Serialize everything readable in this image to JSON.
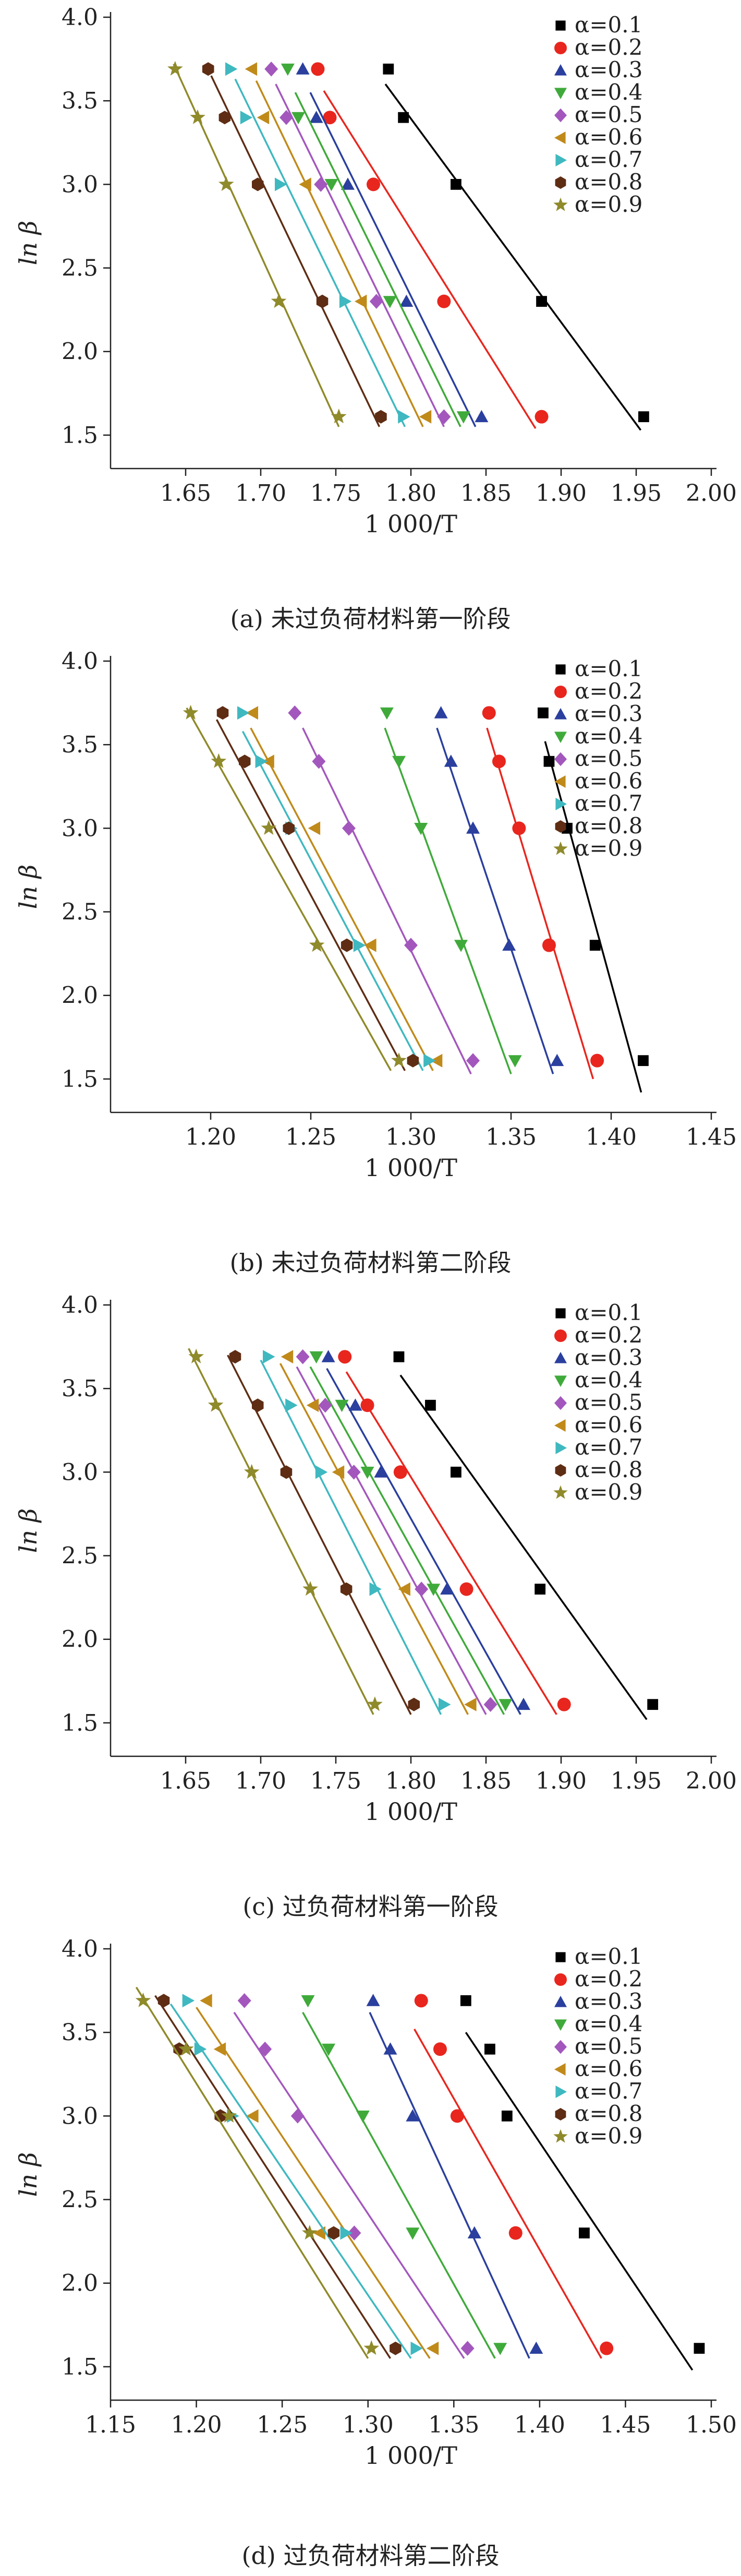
{
  "palette": {
    "black": "#000000",
    "red": "#e8261e",
    "blue": "#2a3f9e",
    "green": "#3faa3a",
    "purple": "#a357bd",
    "orange": "#c08a1a",
    "cyan": "#3fb8c0",
    "brown": "#5e2d14",
    "olive": "#8f8a2a"
  },
  "legend_labels": [
    "α=0.1",
    "α=0.2",
    "α=0.3",
    "α=0.4",
    "α=0.5",
    "α=0.6",
    "α=0.7",
    "α=0.8",
    "α=0.9"
  ],
  "chart_data": [
    {
      "type": "scatter",
      "caption": "(a) 未过负荷材料第一阶段",
      "xlabel": "1 000/T",
      "ylabel": "ln β",
      "xlim": [
        1.6,
        2.0
      ],
      "ylim": [
        1.3,
        4.0
      ],
      "xticks": [
        "1.65",
        "1.70",
        "1.75",
        "1.80",
        "1.85",
        "1.90",
        "1.95",
        "2.00"
      ],
      "yticks": [
        "1.5",
        "2.0",
        "2.5",
        "3.0",
        "3.5",
        "4.0"
      ],
      "y_levels": [
        3.69,
        3.4,
        3.0,
        2.3,
        1.61
      ],
      "series": [
        {
          "name": "α=0.1",
          "x": [
            1.785,
            1.795,
            1.83,
            1.887,
            1.955
          ],
          "fit": [
            [
              1.783,
              3.6
            ],
            [
              1.953,
              1.53
            ]
          ]
        },
        {
          "name": "α=0.2",
          "x": [
            1.738,
            1.746,
            1.775,
            1.822,
            1.887
          ],
          "fit": [
            [
              1.742,
              3.56
            ],
            [
              1.883,
              1.54
            ]
          ]
        },
        {
          "name": "α=0.3",
          "x": [
            1.728,
            1.737,
            1.758,
            1.797,
            1.847
          ],
          "fit": [
            [
              1.733,
              3.55
            ],
            [
              1.843,
              1.55
            ]
          ]
        },
        {
          "name": "α=0.4",
          "x": [
            1.718,
            1.725,
            1.747,
            1.786,
            1.835
          ],
          "fit": [
            [
              1.723,
              3.55
            ],
            [
              1.833,
              1.55
            ]
          ]
        },
        {
          "name": "α=0.5",
          "x": [
            1.707,
            1.717,
            1.74,
            1.777,
            1.822
          ],
          "fit": [
            [
              1.71,
              3.6
            ],
            [
              1.822,
              1.55
            ]
          ]
        },
        {
          "name": "α=0.6",
          "x": [
            1.694,
            1.702,
            1.73,
            1.767,
            1.81
          ],
          "fit": [
            [
              1.697,
              3.62
            ],
            [
              1.808,
              1.55
            ]
          ]
        },
        {
          "name": "α=0.7",
          "x": [
            1.68,
            1.69,
            1.713,
            1.756,
            1.795
          ],
          "fit": [
            [
              1.683,
              3.63
            ],
            [
              1.796,
              1.55
            ]
          ]
        },
        {
          "name": "α=0.8",
          "x": [
            1.665,
            1.676,
            1.698,
            1.741,
            1.78
          ],
          "fit": [
            [
              1.667,
              3.65
            ],
            [
              1.779,
              1.55
            ]
          ]
        },
        {
          "name": "α=0.9",
          "x": [
            1.643,
            1.658,
            1.677,
            1.712,
            1.752
          ],
          "fit": [
            [
              1.642,
              3.72
            ],
            [
              1.752,
              1.55
            ]
          ]
        }
      ]
    },
    {
      "type": "scatter",
      "caption": "(b) 未过负荷材料第二阶段",
      "xlabel": "1 000/T",
      "ylabel": "ln β",
      "xlim": [
        1.15,
        1.45
      ],
      "ylim": [
        1.3,
        4.0
      ],
      "xticks": [
        "1.20",
        "1.25",
        "1.30",
        "1.35",
        "1.40",
        "1.45"
      ],
      "yticks": [
        "1.5",
        "2.0",
        "2.5",
        "3.0",
        "3.5",
        "4.0"
      ],
      "y_levels": [
        3.69,
        3.4,
        3.0,
        2.3,
        1.61
      ],
      "series": [
        {
          "name": "α=0.1",
          "x": [
            1.366,
            1.369,
            1.378,
            1.392,
            1.416
          ],
          "fit": [
            [
              1.367,
              3.52
            ],
            [
              1.415,
              1.42
            ]
          ]
        },
        {
          "name": "α=0.2",
          "x": [
            1.339,
            1.344,
            1.354,
            1.369,
            1.393
          ],
          "fit": [
            [
              1.338,
              3.6
            ],
            [
              1.391,
              1.5
            ]
          ]
        },
        {
          "name": "α=0.3",
          "x": [
            1.315,
            1.32,
            1.331,
            1.349,
            1.373
          ],
          "fit": [
            [
              1.313,
              3.6
            ],
            [
              1.371,
              1.53
            ]
          ]
        },
        {
          "name": "α=0.4",
          "x": [
            1.288,
            1.294,
            1.305,
            1.325,
            1.352
          ],
          "fit": [
            [
              1.287,
              3.6
            ],
            [
              1.35,
              1.53
            ]
          ]
        },
        {
          "name": "α=0.5",
          "x": [
            1.242,
            1.254,
            1.269,
            1.3,
            1.331
          ],
          "fit": [
            [
              1.246,
              3.6
            ],
            [
              1.33,
              1.53
            ]
          ]
        },
        {
          "name": "α=0.6",
          "x": [
            1.221,
            1.229,
            1.252,
            1.28,
            1.313
          ],
          "fit": [
            [
              1.22,
              3.6
            ],
            [
              1.311,
              1.55
            ]
          ]
        },
        {
          "name": "α=0.7",
          "x": [
            1.216,
            1.225,
            1.24,
            1.274,
            1.309
          ],
          "fit": [
            [
              1.216,
              3.58
            ],
            [
              1.306,
              1.55
            ]
          ]
        },
        {
          "name": "α=0.8",
          "x": [
            1.206,
            1.217,
            1.239,
            1.268,
            1.301
          ],
          "fit": [
            [
              1.203,
              3.65
            ],
            [
              1.297,
              1.55
            ]
          ]
        },
        {
          "name": "α=0.9",
          "x": [
            1.19,
            1.204,
            1.229,
            1.253,
            1.294
          ],
          "fit": [
            [
              1.188,
              3.72
            ],
            [
              1.29,
              1.55
            ]
          ]
        }
      ]
    },
    {
      "type": "scatter",
      "caption": "(c) 过负荷材料第一阶段",
      "xlabel": "1 000/T",
      "ylabel": "ln β",
      "xlim": [
        1.6,
        2.0
      ],
      "ylim": [
        1.3,
        4.0
      ],
      "xticks": [
        "1.65",
        "1.70",
        "1.75",
        "1.80",
        "1.85",
        "1.90",
        "1.95",
        "2.00"
      ],
      "yticks": [
        "1.5",
        "2.0",
        "2.5",
        "3.0",
        "3.5",
        "4.0"
      ],
      "y_levels": [
        3.69,
        3.4,
        3.0,
        2.3,
        1.61
      ],
      "series": [
        {
          "name": "α=0.1",
          "x": [
            1.792,
            1.813,
            1.83,
            1.886,
            1.961
          ],
          "fit": [
            [
              1.793,
              3.58
            ],
            [
              1.957,
              1.52
            ]
          ]
        },
        {
          "name": "α=0.2",
          "x": [
            1.756,
            1.771,
            1.793,
            1.837,
            1.902
          ],
          "fit": [
            [
              1.757,
              3.6
            ],
            [
              1.897,
              1.55
            ]
          ]
        },
        {
          "name": "α=0.3",
          "x": [
            1.745,
            1.763,
            1.78,
            1.824,
            1.875
          ],
          "fit": [
            [
              1.744,
              3.62
            ],
            [
              1.873,
              1.55
            ]
          ]
        },
        {
          "name": "α=0.4",
          "x": [
            1.737,
            1.754,
            1.771,
            1.815,
            1.863
          ],
          "fit": [
            [
              1.733,
              3.63
            ],
            [
              1.862,
              1.55
            ]
          ]
        },
        {
          "name": "α=0.5",
          "x": [
            1.728,
            1.743,
            1.762,
            1.807,
            1.853
          ],
          "fit": [
            [
              1.724,
              3.63
            ],
            [
              1.85,
              1.55
            ]
          ]
        },
        {
          "name": "α=0.6",
          "x": [
            1.718,
            1.735,
            1.752,
            1.796,
            1.84
          ],
          "fit": [
            [
              1.713,
              3.65
            ],
            [
              1.838,
              1.55
            ]
          ]
        },
        {
          "name": "α=0.7",
          "x": [
            1.705,
            1.72,
            1.74,
            1.776,
            1.822
          ],
          "fit": [
            [
              1.7,
              3.67
            ],
            [
              1.82,
              1.55
            ]
          ]
        },
        {
          "name": "α=0.8",
          "x": [
            1.683,
            1.698,
            1.717,
            1.757,
            1.802
          ],
          "fit": [
            [
              1.678,
              3.7
            ],
            [
              1.8,
              1.55
            ]
          ]
        },
        {
          "name": "α=0.9",
          "x": [
            1.657,
            1.67,
            1.694,
            1.733,
            1.776
          ],
          "fit": [
            [
              1.652,
              3.74
            ],
            [
              1.775,
              1.55
            ]
          ]
        }
      ]
    },
    {
      "type": "scatter",
      "caption": "(d) 过负荷材料第二阶段",
      "xlabel": "1 000/T",
      "ylabel": "ln β",
      "xlim": [
        1.15,
        1.5
      ],
      "ylim": [
        1.3,
        4.0
      ],
      "xticks": [
        "1.15",
        "1.20",
        "1.25",
        "1.30",
        "1.35",
        "1.40",
        "1.45",
        "1.50"
      ],
      "yticks": [
        "1.5",
        "2.0",
        "2.5",
        "3.0",
        "3.5",
        "4.0"
      ],
      "y_levels": [
        3.69,
        3.4,
        3.0,
        2.3,
        1.61
      ],
      "series": [
        {
          "name": "α=0.1",
          "x": [
            1.357,
            1.371,
            1.381,
            1.426,
            1.493
          ],
          "fit": [
            [
              1.357,
              3.5
            ],
            [
              1.489,
              1.48
            ]
          ]
        },
        {
          "name": "α=0.2",
          "x": [
            1.331,
            1.342,
            1.352,
            1.386,
            1.439
          ],
          "fit": [
            [
              1.327,
              3.52
            ],
            [
              1.436,
              1.55
            ]
          ]
        },
        {
          "name": "α=0.3",
          "x": [
            1.303,
            1.313,
            1.326,
            1.362,
            1.398
          ],
          "fit": [
            [
              1.301,
              3.62
            ],
            [
              1.394,
              1.55
            ]
          ]
        },
        {
          "name": "α=0.4",
          "x": [
            1.265,
            1.277,
            1.297,
            1.326,
            1.377
          ],
          "fit": [
            [
              1.262,
              3.62
            ],
            [
              1.374,
              1.55
            ]
          ]
        },
        {
          "name": "α=0.5",
          "x": [
            1.228,
            1.24,
            1.259,
            1.292,
            1.358
          ],
          "fit": [
            [
              1.222,
              3.62
            ],
            [
              1.356,
              1.55
            ]
          ]
        },
        {
          "name": "α=0.6",
          "x": [
            1.206,
            1.214,
            1.233,
            1.272,
            1.338
          ],
          "fit": [
            [
              1.2,
              3.65
            ],
            [
              1.336,
              1.55
            ]
          ]
        },
        {
          "name": "α=0.7",
          "x": [
            1.195,
            1.202,
            1.221,
            1.287,
            1.328
          ],
          "fit": [
            [
              1.185,
              3.67
            ],
            [
              1.325,
              1.55
            ]
          ]
        },
        {
          "name": "α=0.8",
          "x": [
            1.181,
            1.19,
            1.214,
            1.28,
            1.316
          ],
          "fit": [
            [
              1.176,
              3.72
            ],
            [
              1.313,
              1.55
            ]
          ]
        },
        {
          "name": "α=0.9",
          "x": [
            1.169,
            1.194,
            1.219,
            1.266,
            1.302
          ],
          "fit": [
            [
              1.165,
              3.77
            ],
            [
              1.3,
              1.55
            ]
          ]
        }
      ]
    }
  ]
}
